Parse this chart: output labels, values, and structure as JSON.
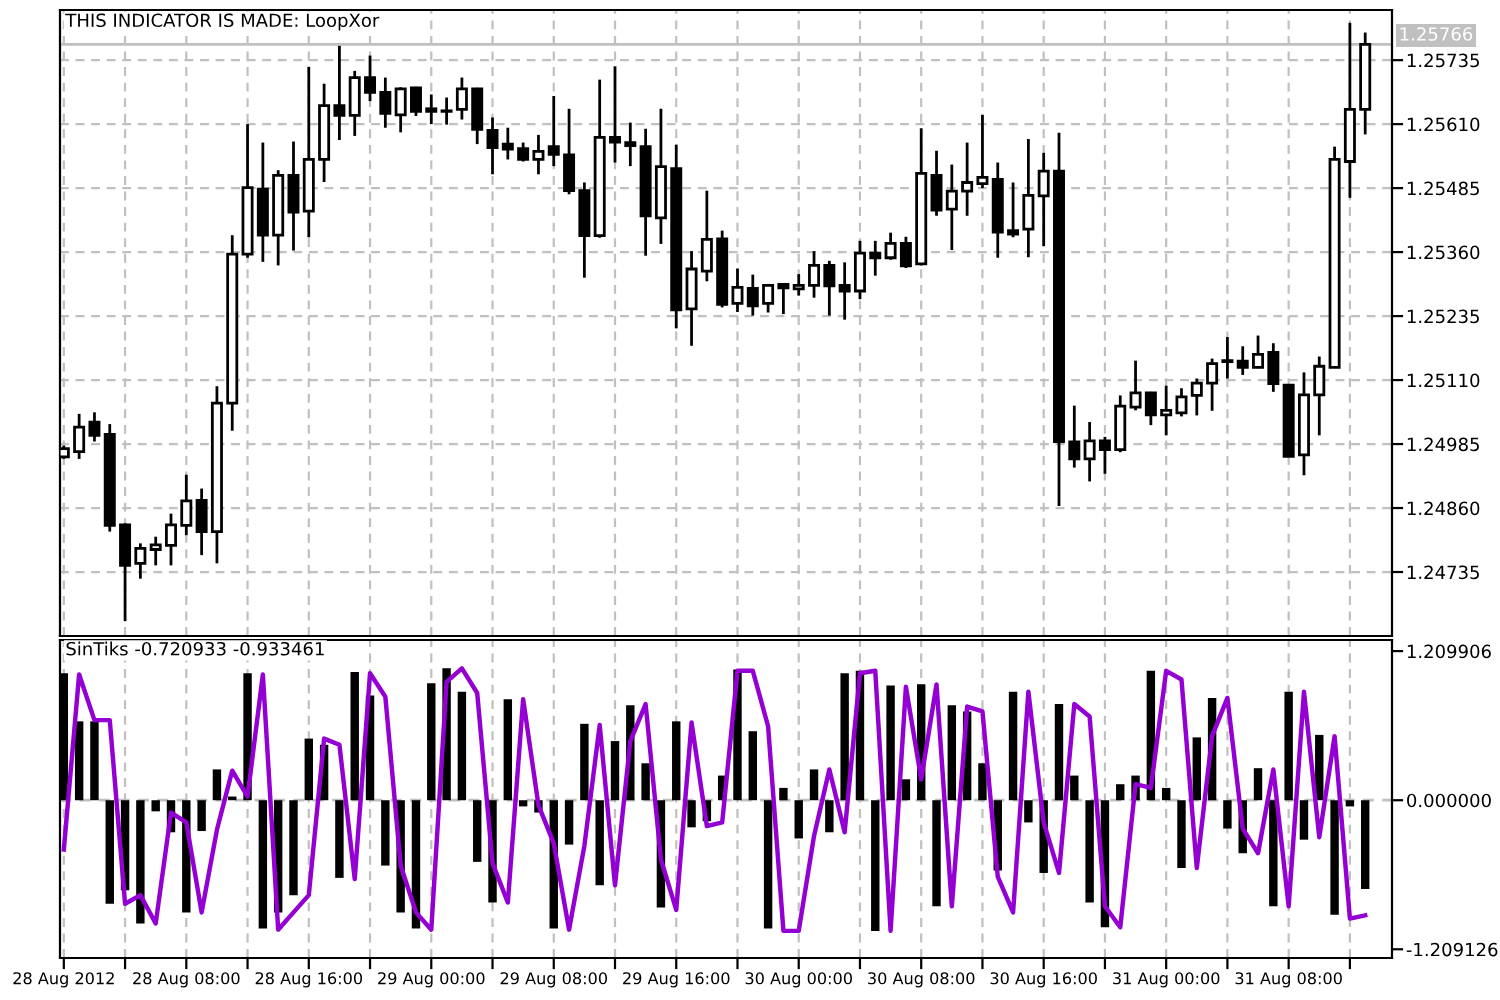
{
  "chart_data": [
    {
      "type": "candlestick",
      "title": "THIS INDICATOR IS MADE: LoopXor",
      "color": "#000000",
      "x": [
        "2012-08-28T00:00",
        "2012-08-28T01:00",
        "2012-08-28T02:00",
        "2012-08-28T03:00",
        "2012-08-28T04:00",
        "2012-08-28T05:00",
        "2012-08-28T06:00",
        "2012-08-28T07:00",
        "2012-08-28T08:00",
        "2012-08-28T09:00",
        "2012-08-28T10:00",
        "2012-08-28T11:00",
        "2012-08-28T12:00",
        "2012-08-28T13:00",
        "2012-08-28T14:00",
        "2012-08-28T15:00",
        "2012-08-28T16:00",
        "2012-08-28T17:00",
        "2012-08-28T18:00",
        "2012-08-28T19:00",
        "2012-08-28T20:00",
        "2012-08-28T21:00",
        "2012-08-28T22:00",
        "2012-08-28T23:00",
        "2012-08-29T00:00",
        "2012-08-29T01:00",
        "2012-08-29T02:00",
        "2012-08-29T03:00",
        "2012-08-29T04:00",
        "2012-08-29T05:00",
        "2012-08-29T06:00",
        "2012-08-29T07:00",
        "2012-08-29T08:00",
        "2012-08-29T09:00",
        "2012-08-29T10:00",
        "2012-08-29T11:00",
        "2012-08-29T12:00",
        "2012-08-29T13:00",
        "2012-08-29T14:00",
        "2012-08-29T15:00",
        "2012-08-29T16:00",
        "2012-08-29T17:00",
        "2012-08-29T18:00",
        "2012-08-29T19:00",
        "2012-08-29T20:00",
        "2012-08-29T21:00",
        "2012-08-29T22:00",
        "2012-08-29T23:00",
        "2012-08-30T00:00",
        "2012-08-30T01:00",
        "2012-08-30T02:00",
        "2012-08-30T03:00",
        "2012-08-30T04:00",
        "2012-08-30T05:00",
        "2012-08-30T06:00",
        "2012-08-30T07:00",
        "2012-08-30T08:00",
        "2012-08-30T09:00",
        "2012-08-30T10:00",
        "2012-08-30T11:00",
        "2012-08-30T12:00",
        "2012-08-30T13:00",
        "2012-08-30T14:00",
        "2012-08-30T15:00",
        "2012-08-30T16:00",
        "2012-08-30T17:00",
        "2012-08-30T18:00",
        "2012-08-30T19:00",
        "2012-08-30T20:00",
        "2012-08-30T21:00",
        "2012-08-30T22:00",
        "2012-08-30T23:00",
        "2012-08-31T00:00",
        "2012-08-31T01:00",
        "2012-08-31T02:00",
        "2012-08-31T03:00",
        "2012-08-31T04:00",
        "2012-08-31T05:00",
        "2012-08-31T06:00",
        "2012-08-31T07:00",
        "2012-08-31T08:00",
        "2012-08-31T09:00",
        "2012-08-31T10:00",
        "2012-08-31T11:00",
        "2012-08-31T12:00",
        "2012-08-31T13:00"
      ],
      "ohlc": [
        [
          1.2496,
          1.24982,
          1.24956,
          1.24976
        ],
        [
          1.2497,
          1.25044,
          1.24956,
          1.25018
        ],
        [
          1.25028,
          1.25047,
          1.2499,
          1.25002
        ],
        [
          1.25004,
          1.25024,
          1.24814,
          1.24826
        ],
        [
          1.24827,
          1.2483,
          1.24639,
          1.24748
        ],
        [
          1.24752,
          1.24791,
          1.24722,
          1.24781
        ],
        [
          1.24779,
          1.24804,
          1.24748,
          1.24788
        ],
        [
          1.24787,
          1.24849,
          1.24748,
          1.24827
        ],
        [
          1.24826,
          1.24925,
          1.24807,
          1.24874
        ],
        [
          1.24875,
          1.24898,
          1.24768,
          1.24814
        ],
        [
          1.24814,
          1.25098,
          1.24752,
          1.25065
        ],
        [
          1.25065,
          1.25393,
          1.25011,
          1.25356
        ],
        [
          1.25356,
          1.2561,
          1.25349,
          1.25486
        ],
        [
          1.25483,
          1.25574,
          1.25341,
          1.25393
        ],
        [
          1.25393,
          1.2552,
          1.25334,
          1.2551
        ],
        [
          1.2551,
          1.25576,
          1.25363,
          1.25438
        ],
        [
          1.2544,
          1.25722,
          1.25389,
          1.25541
        ],
        [
          1.25541,
          1.25689,
          1.25497,
          1.25646
        ],
        [
          1.25646,
          1.25763,
          1.25579,
          1.25627
        ],
        [
          1.25627,
          1.25714,
          1.25587,
          1.25701
        ],
        [
          1.25701,
          1.25744,
          1.25655,
          1.25672
        ],
        [
          1.25672,
          1.25701,
          1.25603,
          1.25631
        ],
        [
          1.25628,
          1.25682,
          1.25594,
          1.25679
        ],
        [
          1.25681,
          1.25683,
          1.25626,
          1.25635
        ],
        [
          1.2564,
          1.25668,
          1.2561,
          1.25635
        ],
        [
          1.25635,
          1.25662,
          1.25609,
          1.25636
        ],
        [
          1.25639,
          1.25701,
          1.25619,
          1.25679
        ],
        [
          1.25679,
          1.25681,
          1.25571,
          1.256
        ],
        [
          1.25598,
          1.25623,
          1.25512,
          1.25564
        ],
        [
          1.25571,
          1.25603,
          1.25541,
          1.25561
        ],
        [
          1.25562,
          1.25574,
          1.25537,
          1.25541
        ],
        [
          1.25541,
          1.25589,
          1.25512,
          1.25557
        ],
        [
          1.25566,
          1.25665,
          1.25528,
          1.25551
        ],
        [
          1.2555,
          1.2564,
          1.25473,
          1.2548
        ],
        [
          1.2548,
          1.25496,
          1.2531,
          1.25392
        ],
        [
          1.25392,
          1.25697,
          1.25388,
          1.25584
        ],
        [
          1.25584,
          1.25723,
          1.25535,
          1.25575
        ],
        [
          1.25574,
          1.25613,
          1.25528,
          1.25568
        ],
        [
          1.25566,
          1.25601,
          1.25353,
          1.25431
        ],
        [
          1.25427,
          1.2564,
          1.25376,
          1.25527
        ],
        [
          1.25523,
          1.2557,
          1.25211,
          1.25247
        ],
        [
          1.25249,
          1.25362,
          1.25177,
          1.25327
        ],
        [
          1.25323,
          1.2548,
          1.25303,
          1.25385
        ],
        [
          1.25386,
          1.25402,
          1.25252,
          1.25258
        ],
        [
          1.2526,
          1.25328,
          1.25243,
          1.25291
        ],
        [
          1.25289,
          1.25316,
          1.25236,
          1.25255
        ],
        [
          1.2526,
          1.25296,
          1.25242,
          1.25295
        ],
        [
          1.25297,
          1.25299,
          1.25239,
          1.2529
        ],
        [
          1.25288,
          1.25317,
          1.25275,
          1.25295
        ],
        [
          1.25295,
          1.25362,
          1.25271,
          1.25334
        ],
        [
          1.25334,
          1.25343,
          1.25236,
          1.25294
        ],
        [
          1.25295,
          1.2534,
          1.25228,
          1.25284
        ],
        [
          1.25284,
          1.25382,
          1.25268,
          1.25358
        ],
        [
          1.25358,
          1.25382,
          1.25314,
          1.25349
        ],
        [
          1.25349,
          1.25398,
          1.25345,
          1.25377
        ],
        [
          1.25377,
          1.2539,
          1.25329,
          1.25333
        ],
        [
          1.25337,
          1.25602,
          1.25334,
          1.25514
        ],
        [
          1.2551,
          1.25558,
          1.25431,
          1.25442
        ],
        [
          1.25444,
          1.25531,
          1.25364,
          1.25479
        ],
        [
          1.25479,
          1.25574,
          1.25431,
          1.25496
        ],
        [
          1.25494,
          1.25628,
          1.25485,
          1.25506
        ],
        [
          1.25502,
          1.25535,
          1.25349,
          1.25399
        ],
        [
          1.25402,
          1.25496,
          1.25389,
          1.25395
        ],
        [
          1.25405,
          1.25581,
          1.2535,
          1.25471
        ],
        [
          1.2547,
          1.25554,
          1.25372,
          1.25518
        ],
        [
          1.25518,
          1.25593,
          1.24864,
          1.2499
        ],
        [
          1.24989,
          1.2506,
          1.24939,
          1.24956
        ],
        [
          1.24956,
          1.25028,
          1.24912,
          1.24991
        ],
        [
          1.24991,
          1.24999,
          1.24927,
          1.24974
        ],
        [
          1.24974,
          1.2508,
          1.24969,
          1.25059
        ],
        [
          1.25057,
          1.25148,
          1.25051,
          1.25085
        ],
        [
          1.25085,
          1.25087,
          1.25022,
          1.25042
        ],
        [
          1.25042,
          1.25099,
          1.25002,
          1.25051
        ],
        [
          1.25046,
          1.25094,
          1.25039,
          1.25077
        ],
        [
          1.2508,
          1.25113,
          1.25041,
          1.25104
        ],
        [
          1.25104,
          1.25152,
          1.2505,
          1.25142
        ],
        [
          1.25146,
          1.25194,
          1.25113,
          1.25148
        ],
        [
          1.25147,
          1.25176,
          1.2512,
          1.25135
        ],
        [
          1.25135,
          1.25197,
          1.25133,
          1.2516
        ],
        [
          1.25164,
          1.25182,
          1.25087,
          1.25103
        ],
        [
          1.251,
          1.25102,
          1.2496,
          1.24961
        ],
        [
          1.24964,
          1.25125,
          1.24924,
          1.25081
        ],
        [
          1.25081,
          1.25156,
          1.25002,
          1.25137
        ],
        [
          1.25135,
          1.25566,
          1.25134,
          1.25541
        ],
        [
          1.25537,
          1.25808,
          1.25466,
          1.25639
        ],
        [
          1.25639,
          1.25789,
          1.2559,
          1.25766
        ]
      ],
      "xlim": [
        "2012-08-27T23:45",
        "2012-08-31T14:45"
      ],
      "xticks": [
        {
          "value": "2012-08-28T00:00",
          "label": null
        },
        {
          "value": "2012-08-28T04:00",
          "label": null
        },
        {
          "value": "2012-08-28T08:00",
          "label": null
        },
        {
          "value": "2012-08-28T12:00",
          "label": null
        },
        {
          "value": "2012-08-28T16:00",
          "label": null
        },
        {
          "value": "2012-08-28T20:00",
          "label": null
        },
        {
          "value": "2012-08-29T00:00",
          "label": null
        },
        {
          "value": "2012-08-29T04:00",
          "label": null
        },
        {
          "value": "2012-08-29T08:00",
          "label": null
        },
        {
          "value": "2012-08-29T12:00",
          "label": null
        },
        {
          "value": "2012-08-29T16:00",
          "label": null
        },
        {
          "value": "2012-08-29T20:00",
          "label": null
        },
        {
          "value": "2012-08-30T00:00",
          "label": null
        },
        {
          "value": "2012-08-30T04:00",
          "label": null
        },
        {
          "value": "2012-08-30T08:00",
          "label": null
        },
        {
          "value": "2012-08-30T12:00",
          "label": null
        },
        {
          "value": "2012-08-30T16:00",
          "label": null
        },
        {
          "value": "2012-08-30T20:00",
          "label": null
        },
        {
          "value": "2012-08-31T00:00",
          "label": null
        },
        {
          "value": "2012-08-31T04:00",
          "label": null
        },
        {
          "value": "2012-08-31T08:00",
          "label": null
        },
        {
          "value": "2012-08-31T12:00",
          "label": null
        }
      ],
      "ylim": [
        1.2461,
        1.25833
      ],
      "yticks": [
        {
          "value": 1.24735,
          "label": "1.24735"
        },
        {
          "value": 1.2486,
          "label": "1.24860"
        },
        {
          "value": 1.24985,
          "label": "1.24985"
        },
        {
          "value": 1.2511,
          "label": "1.25110"
        },
        {
          "value": 1.25235,
          "label": "1.25235"
        },
        {
          "value": 1.2536,
          "label": "1.25360"
        },
        {
          "value": 1.25485,
          "label": "1.25485"
        },
        {
          "value": 1.2561,
          "label": "1.25610"
        },
        {
          "value": 1.25735,
          "label": "1.25735"
        }
      ],
      "ref_lines": [
        {
          "axis": "y",
          "value": 1.25766,
          "label": "1.25766",
          "color": "#c0c0c0",
          "line_style": "solid"
        }
      ],
      "grid": true,
      "tick_labels": "y"
    },
    {
      "type": "bar",
      "title": "SinTiks -0.720933 -0.933461",
      "x": [
        "2012-08-28T00:00",
        "2012-08-28T01:00",
        "2012-08-28T02:00",
        "2012-08-28T03:00",
        "2012-08-28T04:00",
        "2012-08-28T05:00",
        "2012-08-28T06:00",
        "2012-08-28T07:00",
        "2012-08-28T08:00",
        "2012-08-28T09:00",
        "2012-08-28T10:00",
        "2012-08-28T11:00",
        "2012-08-28T12:00",
        "2012-08-28T13:00",
        "2012-08-28T14:00",
        "2012-08-28T15:00",
        "2012-08-28T16:00",
        "2012-08-28T17:00",
        "2012-08-28T18:00",
        "2012-08-28T19:00",
        "2012-08-28T20:00",
        "2012-08-28T21:00",
        "2012-08-28T22:00",
        "2012-08-28T23:00",
        "2012-08-29T00:00",
        "2012-08-29T01:00",
        "2012-08-29T02:00",
        "2012-08-29T03:00",
        "2012-08-29T04:00",
        "2012-08-29T05:00",
        "2012-08-29T06:00",
        "2012-08-29T07:00",
        "2012-08-29T08:00",
        "2012-08-29T09:00",
        "2012-08-29T10:00",
        "2012-08-29T11:00",
        "2012-08-29T12:00",
        "2012-08-29T13:00",
        "2012-08-29T14:00",
        "2012-08-29T15:00",
        "2012-08-29T16:00",
        "2012-08-29T17:00",
        "2012-08-29T18:00",
        "2012-08-29T19:00",
        "2012-08-29T20:00",
        "2012-08-29T21:00",
        "2012-08-29T22:00",
        "2012-08-29T23:00",
        "2012-08-30T00:00",
        "2012-08-30T01:00",
        "2012-08-30T02:00",
        "2012-08-30T03:00",
        "2012-08-30T04:00",
        "2012-08-30T05:00",
        "2012-08-30T06:00",
        "2012-08-30T07:00",
        "2012-08-30T08:00",
        "2012-08-30T09:00",
        "2012-08-30T10:00",
        "2012-08-30T11:00",
        "2012-08-30T12:00",
        "2012-08-30T13:00",
        "2012-08-30T14:00",
        "2012-08-30T15:00",
        "2012-08-30T16:00",
        "2012-08-30T17:00",
        "2012-08-30T18:00",
        "2012-08-30T19:00",
        "2012-08-30T20:00",
        "2012-08-30T21:00",
        "2012-08-30T22:00",
        "2012-08-30T23:00",
        "2012-08-31T00:00",
        "2012-08-31T01:00",
        "2012-08-31T02:00",
        "2012-08-31T03:00",
        "2012-08-31T04:00",
        "2012-08-31T05:00",
        "2012-08-31T06:00",
        "2012-08-31T07:00",
        "2012-08-31T08:00",
        "2012-08-31T09:00",
        "2012-08-31T10:00",
        "2012-08-31T11:00",
        "2012-08-31T12:00",
        "2012-08-31T13:00"
      ],
      "series": [
        {
          "type": "bar",
          "color": "#000000",
          "values": [
            1.03,
            0.64,
            0.64,
            -0.84,
            -0.73,
            -1.0,
            -0.09,
            -0.26,
            -0.91,
            -0.25,
            0.25,
            0.03,
            1.03,
            -1.04,
            -0.91,
            -0.77,
            0.5,
            0.45,
            -0.63,
            1.04,
            0.85,
            -0.53,
            -0.91,
            -1.04,
            0.95,
            1.07,
            0.88,
            -0.5,
            -0.83,
            0.82,
            -0.05,
            -0.1,
            -1.04,
            -0.36,
            0.62,
            -0.69,
            0.48,
            0.77,
            0.3,
            -0.87,
            0.64,
            -0.22,
            -0.17,
            0.2,
            1.06,
            0.56,
            -1.04,
            0.1,
            -0.31,
            0.25,
            -0.26,
            1.03,
            1.05,
            -1.06,
            0.93,
            0.17,
            0.94,
            -0.86,
            0.77,
            0.72,
            0.3,
            -0.57,
            0.88,
            -0.18,
            -0.59,
            0.78,
            0.2,
            -0.83,
            -1.03,
            0.13,
            0.2,
            1.05,
            0.1,
            -0.55,
            0.51,
            0.83,
            -0.23,
            -0.43,
            0.26,
            -0.86,
            0.88,
            -0.32,
            0.53,
            -0.93,
            -0.05,
            -0.720933
          ]
        },
        {
          "type": "line",
          "color": "#9400d3",
          "values": [
            -0.4,
            1.02,
            0.65,
            0.65,
            -0.84,
            -0.77,
            -1.0,
            -0.1,
            -0.18,
            -0.91,
            -0.24,
            0.24,
            0.03,
            1.02,
            -1.05,
            -0.91,
            -0.77,
            0.5,
            0.45,
            -0.64,
            1.03,
            0.84,
            -0.53,
            -0.91,
            -1.05,
            0.96,
            1.07,
            0.87,
            -0.51,
            -0.83,
            0.82,
            -0.04,
            -0.35,
            -1.05,
            -0.37,
            0.61,
            -0.69,
            0.48,
            0.78,
            -0.48,
            -0.89,
            0.63,
            -0.21,
            -0.18,
            1.05,
            1.05,
            0.6,
            -1.06,
            -1.06,
            -0.29,
            0.25,
            -0.26,
            1.03,
            1.05,
            -1.06,
            0.92,
            0.17,
            0.94,
            -0.86,
            0.76,
            0.72,
            -0.62,
            -0.91,
            0.88,
            -0.18,
            -0.59,
            0.78,
            0.68,
            -0.86,
            -1.03,
            0.13,
            0.1,
            1.05,
            0.98,
            -0.55,
            0.52,
            0.83,
            -0.23,
            -0.43,
            0.25,
            -0.86,
            0.88,
            -0.3,
            0.52,
            -0.96,
            -0.933461
          ]
        }
      ],
      "xlim": [
        "2012-08-27T23:45",
        "2012-08-31T14:45"
      ],
      "xticks": [
        {
          "value": "2012-08-28T00:00",
          "label": "28 Aug 2012"
        },
        {
          "value": "2012-08-28T04:00",
          "label": null
        },
        {
          "value": "2012-08-28T08:00",
          "label": "28 Aug 08:00"
        },
        {
          "value": "2012-08-28T12:00",
          "label": null
        },
        {
          "value": "2012-08-28T16:00",
          "label": "28 Aug 16:00"
        },
        {
          "value": "2012-08-28T20:00",
          "label": null
        },
        {
          "value": "2012-08-29T00:00",
          "label": "29 Aug 00:00"
        },
        {
          "value": "2012-08-29T04:00",
          "label": null
        },
        {
          "value": "2012-08-29T08:00",
          "label": "29 Aug 08:00"
        },
        {
          "value": "2012-08-29T12:00",
          "label": null
        },
        {
          "value": "2012-08-29T16:00",
          "label": "29 Aug 16:00"
        },
        {
          "value": "2012-08-29T20:00",
          "label": null
        },
        {
          "value": "2012-08-30T00:00",
          "label": "30 Aug 00:00"
        },
        {
          "value": "2012-08-30T04:00",
          "label": null
        },
        {
          "value": "2012-08-30T08:00",
          "label": "30 Aug 08:00"
        },
        {
          "value": "2012-08-30T12:00",
          "label": null
        },
        {
          "value": "2012-08-30T16:00",
          "label": "30 Aug 16:00"
        },
        {
          "value": "2012-08-30T20:00",
          "label": null
        },
        {
          "value": "2012-08-31T00:00",
          "label": "31 Aug 00:00"
        },
        {
          "value": "2012-08-31T04:00",
          "label": null
        },
        {
          "value": "2012-08-31T08:00",
          "label": "31 Aug 08:00"
        },
        {
          "value": "2012-08-31T12:00",
          "label": null
        }
      ],
      "ylim": [
        -1.28,
        1.3
      ],
      "yticks": [
        1.209906,
        {
          "value": 0,
          "label": "0.000000"
        },
        -1.209126
      ],
      "ref_lines": [
        {
          "axis": "y",
          "value": 0,
          "color": "#c0c0c0",
          "line_style": "dashed"
        }
      ],
      "grid": "x"
    }
  ]
}
